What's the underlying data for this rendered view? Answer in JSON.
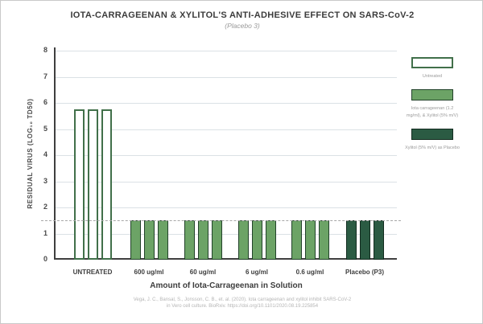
{
  "figure": {
    "title": "IOTA-CARRAGEENAN & XYLITOL'S ANTI-ADHESIVE EFFECT ON SARS-CoV-2",
    "subtitle": "(Placebo 3)"
  },
  "chart_data": {
    "type": "bar",
    "title": "IOTA-CARRAGEENAN & XYLITOL'S ANTI-ADHESIVE EFFECT ON SARS-CoV-2",
    "subtitle": "(Placebo 3)",
    "xlabel": "Amount of Iota-Carrageenan in Solution",
    "ylabel": "RESIDUAL VIRUS (LOG₁₀ TD50)",
    "ylim": [
      0,
      8
    ],
    "yticks": [
      0,
      1,
      2,
      3,
      4,
      5,
      6,
      7,
      8
    ],
    "grid": true,
    "dashed_line_y": 1.5,
    "legend_position": "right",
    "categories": [
      "UNTREATED",
      "600 ug/ml",
      "60 ug/ml",
      "6 ug/ml",
      "0.6 ug/ml",
      "Placebo (P3)"
    ],
    "groups": [
      {
        "category": "UNTREATED",
        "style": "untreated",
        "values": [
          5.75,
          5.75,
          5.75
        ]
      },
      {
        "category": "600 ug/ml",
        "style": "treated",
        "values": [
          1.5,
          1.5,
          1.5
        ]
      },
      {
        "category": "60 ug/ml",
        "style": "treated",
        "values": [
          1.5,
          1.5,
          1.5
        ]
      },
      {
        "category": "6 ug/ml",
        "style": "treated",
        "values": [
          1.5,
          1.5,
          1.5
        ]
      },
      {
        "category": "0.6 ug/ml",
        "style": "treated",
        "values": [
          1.5,
          1.5,
          1.5
        ]
      },
      {
        "category": "Placebo (P3)",
        "style": "placebo",
        "values": [
          1.5,
          1.5,
          1.5
        ]
      }
    ],
    "legend": [
      {
        "label": "Untreated",
        "style": "untreated"
      },
      {
        "label": "Iota carrageenan (1.2 mg/ml), & Xylitol (5% m/V)",
        "style": "treated"
      },
      {
        "label": "Xylitol (5% m/V) as Placebo",
        "style": "placebo"
      }
    ],
    "colors": {
      "untreated_fill": "#ffffff",
      "untreated_border": "#41704a",
      "treated_fill": "#6ca366",
      "treated_border": "#22422a",
      "placebo_fill": "#2b5b43",
      "placebo_border": "#122b1f",
      "gridline": "#dbe1e5",
      "axis": "#3f3f3f",
      "dashed_line": "#a8a8a8"
    }
  },
  "citation": {
    "line1": "Vega, J. C., Bansal, S., Jonsson, C. B., et. al. (2020). Iota carrageenan and xylitol inhibit SARS-CoV-2",
    "line2": "in Vero cell culture. BioRxiv. https://doi.org/10.1101/2020.08.19.225854"
  }
}
